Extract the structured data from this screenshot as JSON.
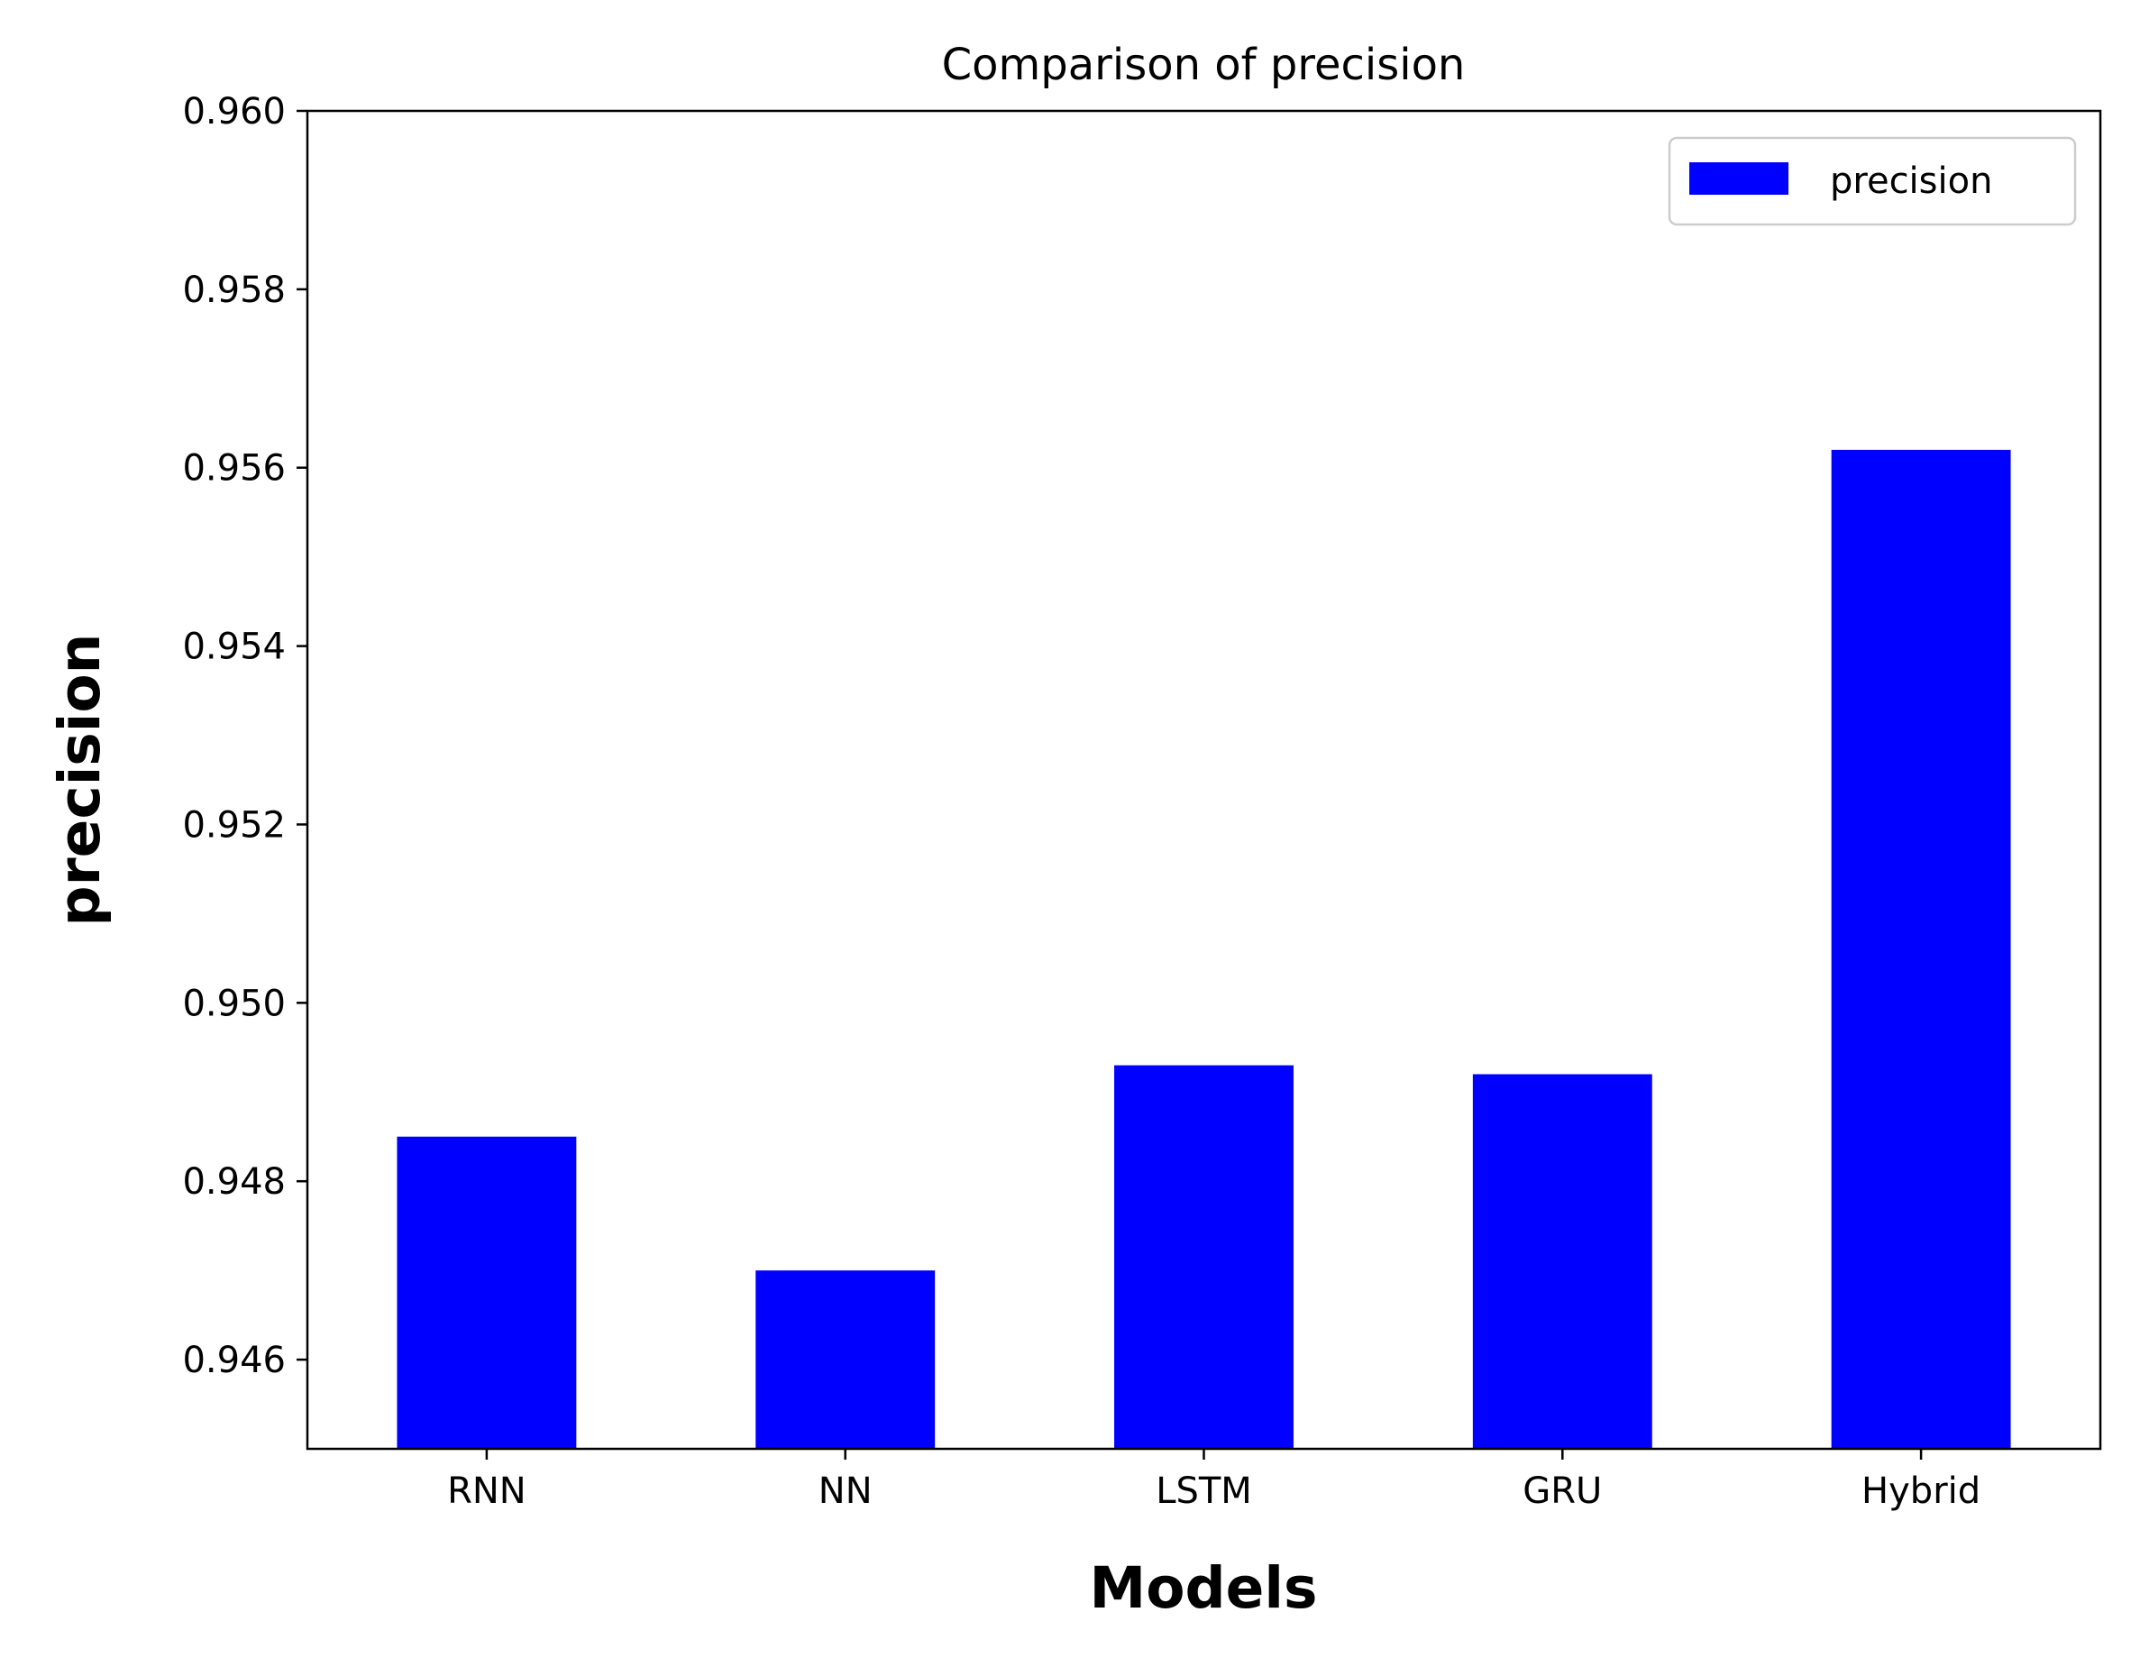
{
  "chart_data": {
    "type": "bar",
    "title": "Comparison of precision",
    "xlabel": "Models",
    "ylabel": "precision",
    "categories": [
      "RNN",
      "NN",
      "LSTM",
      "GRU",
      "Hybrid"
    ],
    "series": [
      {
        "name": "precision",
        "values": [
          0.9485,
          0.947,
          0.9493,
          0.9492,
          0.9562
        ],
        "color": "#0000ff"
      }
    ],
    "ylim": [
      0.945,
      0.96
    ],
    "yticks": [
      0.946,
      0.948,
      0.95,
      0.952,
      0.954,
      0.956,
      0.958,
      0.96
    ],
    "ytick_labels": [
      "0.946",
      "0.948",
      "0.950",
      "0.952",
      "0.954",
      "0.956",
      "0.958",
      "0.960"
    ],
    "grid": false,
    "legend": {
      "position": "top-right",
      "entries": [
        "precision"
      ]
    }
  }
}
